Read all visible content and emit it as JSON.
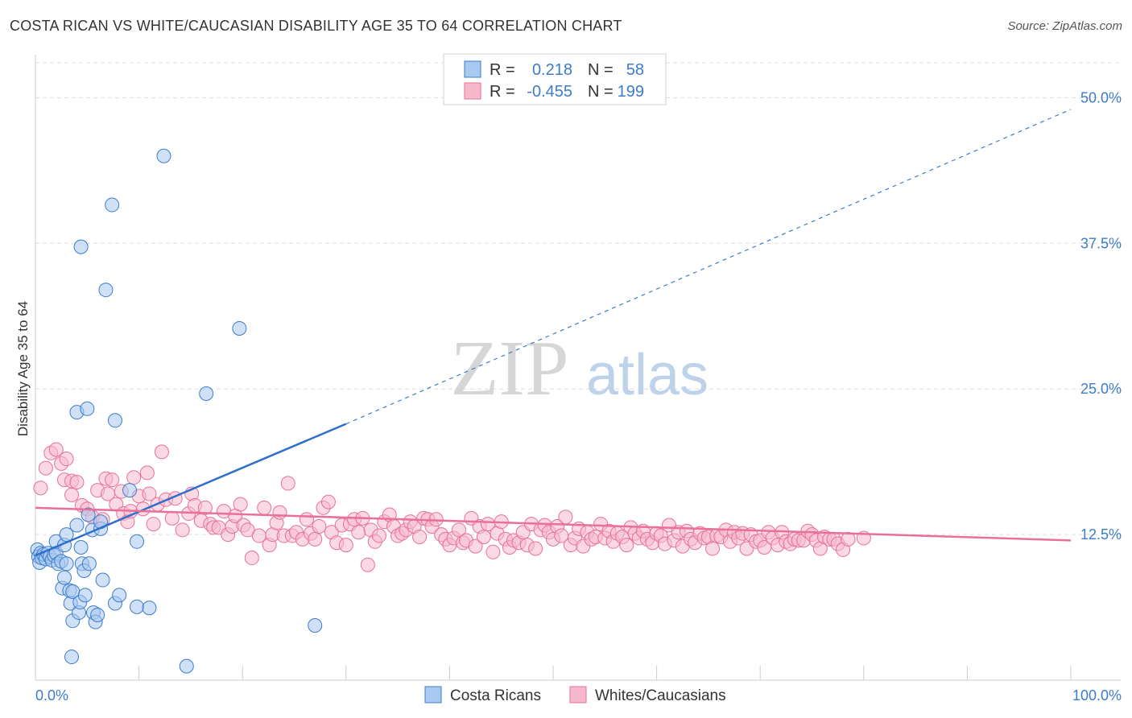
{
  "header": {
    "title": "COSTA RICAN VS WHITE/CAUCASIAN DISABILITY AGE 35 TO 64 CORRELATION CHART",
    "source": "Source: ZipAtlas.com"
  },
  "watermark": {
    "part1": "ZIP",
    "part2": "atlas"
  },
  "colors": {
    "blue": "#3d7cc9",
    "blue_fill": "#a9c9f0",
    "pink": "#e8709a",
    "pink_fill": "#f6b9cc",
    "grid": "#dddddd"
  },
  "legend": {
    "r_label": "R =",
    "n_label": "N =",
    "rows": [
      {
        "series": "Costa Ricans",
        "r": "0.218",
        "n": "58"
      },
      {
        "series": "Whites/Caucasians",
        "r": "-0.455",
        "n": "199"
      }
    ]
  },
  "chart_data": {
    "type": "scatter",
    "title": "COSTA RICAN VS WHITE/CAUCASIAN DISABILITY AGE 35 TO 64 CORRELATION CHART",
    "ylabel": "Disability Age 35 to 64",
    "xlabel": "",
    "xlim": [
      0,
      100
    ],
    "ylim": [
      0,
      53
    ],
    "x_tick_labels": [
      "0.0%",
      "100.0%"
    ],
    "y_ticks": [
      12.5,
      25.0,
      37.5,
      50.0
    ],
    "y_tick_labels": [
      "12.5%",
      "25.0%",
      "37.5%",
      "50.0%"
    ],
    "grid": true,
    "legend_position": "top-center",
    "series": [
      {
        "name": "Costa Ricans",
        "color": "#3d7cc9",
        "trend": {
          "x0": 0,
          "y0": 10.7,
          "x1": 30,
          "y1": 22.0,
          "dashed_to_x": 100,
          "dashed_to_y": 49.0
        },
        "points": [
          [
            0.2,
            11.2
          ],
          [
            0.3,
            10.6
          ],
          [
            0.4,
            10.1
          ],
          [
            0.5,
            10.9
          ],
          [
            0.6,
            10.5
          ],
          [
            0.8,
            10.8
          ],
          [
            1.0,
            10.4
          ],
          [
            1.2,
            10.9
          ],
          [
            1.4,
            10.6
          ],
          [
            1.6,
            10.3
          ],
          [
            1.8,
            10.7
          ],
          [
            2.0,
            10.9
          ],
          [
            2.0,
            11.9
          ],
          [
            2.2,
            10.0
          ],
          [
            2.5,
            10.2
          ],
          [
            2.6,
            7.9
          ],
          [
            2.8,
            8.8
          ],
          [
            2.8,
            11.6
          ],
          [
            3.0,
            12.5
          ],
          [
            3.0,
            10.0
          ],
          [
            3.3,
            7.7
          ],
          [
            3.4,
            6.6
          ],
          [
            3.6,
            5.1
          ],
          [
            3.6,
            7.6
          ],
          [
            4.0,
            13.3
          ],
          [
            3.5,
            2.0
          ],
          [
            4.0,
            23.0
          ],
          [
            4.2,
            5.8
          ],
          [
            4.3,
            6.7
          ],
          [
            4.4,
            11.4
          ],
          [
            4.5,
            10.0
          ],
          [
            4.4,
            37.2
          ],
          [
            4.7,
            9.4
          ],
          [
            4.8,
            7.3
          ],
          [
            5.0,
            23.3
          ],
          [
            5.1,
            14.2
          ],
          [
            5.2,
            10.0
          ],
          [
            5.5,
            12.9
          ],
          [
            5.6,
            5.8
          ],
          [
            5.8,
            5.0
          ],
          [
            6.0,
            5.6
          ],
          [
            6.3,
            13.0
          ],
          [
            6.3,
            13.6
          ],
          [
            6.5,
            8.6
          ],
          [
            6.8,
            33.5
          ],
          [
            7.4,
            40.8
          ],
          [
            7.7,
            6.6
          ],
          [
            7.7,
            22.3
          ],
          [
            8.1,
            7.3
          ],
          [
            9.1,
            16.3
          ],
          [
            9.8,
            11.9
          ],
          [
            9.8,
            6.3
          ],
          [
            11.0,
            6.2
          ],
          [
            12.4,
            45.0
          ],
          [
            14.6,
            1.2
          ],
          [
            16.5,
            24.6
          ],
          [
            19.7,
            30.2
          ],
          [
            27.0,
            4.7
          ]
        ]
      },
      {
        "name": "Whites/Caucasians",
        "color": "#e8709a",
        "trend": {
          "x0": 0,
          "y0": 14.8,
          "x1": 100,
          "y1": 12.0
        },
        "points": [
          [
            0.5,
            16.5
          ],
          [
            1.0,
            18.2
          ],
          [
            1.5,
            19.5
          ],
          [
            2.0,
            19.8
          ],
          [
            2.5,
            18.6
          ],
          [
            2.8,
            17.2
          ],
          [
            3.0,
            19.0
          ],
          [
            3.5,
            15.9
          ],
          [
            3.5,
            17.1
          ],
          [
            4.0,
            17.0
          ],
          [
            4.5,
            15.0
          ],
          [
            5.0,
            14.7
          ],
          [
            5.5,
            14.0
          ],
          [
            6.0,
            16.3
          ],
          [
            6.5,
            13.8
          ],
          [
            6.8,
            17.3
          ],
          [
            7.0,
            16.0
          ],
          [
            7.4,
            17.2
          ],
          [
            7.8,
            15.1
          ],
          [
            8.3,
            16.2
          ],
          [
            8.5,
            14.3
          ],
          [
            8.9,
            13.6
          ],
          [
            9.2,
            14.5
          ],
          [
            9.5,
            17.4
          ],
          [
            10.0,
            15.8
          ],
          [
            10.4,
            14.7
          ],
          [
            10.8,
            17.8
          ],
          [
            11.0,
            16.0
          ],
          [
            11.4,
            13.4
          ],
          [
            11.8,
            15.1
          ],
          [
            12.2,
            19.6
          ],
          [
            12.6,
            15.5
          ],
          [
            13.2,
            13.9
          ],
          [
            13.5,
            15.6
          ],
          [
            14.2,
            12.9
          ],
          [
            14.8,
            14.3
          ],
          [
            15.1,
            16.0
          ],
          [
            15.4,
            15.0
          ],
          [
            16.0,
            13.7
          ],
          [
            16.4,
            14.8
          ],
          [
            16.9,
            13.4
          ],
          [
            17.2,
            13.1
          ],
          [
            17.7,
            13.1
          ],
          [
            18.2,
            14.5
          ],
          [
            18.6,
            12.5
          ],
          [
            19.0,
            13.2
          ],
          [
            19.3,
            14.1
          ],
          [
            19.8,
            15.1
          ],
          [
            20.1,
            13.3
          ],
          [
            20.5,
            12.9
          ],
          [
            20.9,
            10.5
          ],
          [
            21.6,
            12.4
          ],
          [
            22.1,
            14.8
          ],
          [
            22.6,
            11.6
          ],
          [
            22.9,
            12.5
          ],
          [
            23.3,
            13.5
          ],
          [
            23.6,
            14.4
          ],
          [
            24.0,
            12.4
          ],
          [
            24.4,
            16.9
          ],
          [
            24.8,
            12.4
          ],
          [
            25.2,
            12.7
          ],
          [
            25.8,
            12.1
          ],
          [
            26.2,
            13.8
          ],
          [
            26.6,
            12.6
          ],
          [
            27.0,
            12.1
          ],
          [
            27.4,
            13.2
          ],
          [
            27.8,
            14.8
          ],
          [
            28.3,
            15.3
          ],
          [
            28.6,
            12.7
          ],
          [
            29.1,
            11.8
          ],
          [
            29.6,
            13.3
          ],
          [
            30.0,
            11.6
          ],
          [
            30.4,
            13.4
          ],
          [
            30.8,
            13.8
          ],
          [
            31.2,
            12.7
          ],
          [
            31.6,
            13.9
          ],
          [
            32.1,
            9.9
          ],
          [
            32.4,
            12.9
          ],
          [
            32.8,
            11.9
          ],
          [
            33.2,
            12.4
          ],
          [
            33.7,
            13.6
          ],
          [
            34.2,
            14.2
          ],
          [
            34.6,
            13.2
          ],
          [
            35.0,
            12.4
          ],
          [
            35.4,
            12.6
          ],
          [
            35.8,
            12.9
          ],
          [
            36.2,
            13.6
          ],
          [
            36.6,
            13.2
          ],
          [
            37.1,
            12.3
          ],
          [
            37.5,
            13.9
          ],
          [
            37.9,
            13.8
          ],
          [
            38.3,
            13.2
          ],
          [
            38.7,
            13.8
          ],
          [
            39.2,
            12.5
          ],
          [
            39.6,
            12.1
          ],
          [
            40.0,
            11.6
          ],
          [
            40.4,
            12.2
          ],
          [
            40.9,
            12.9
          ],
          [
            41.3,
            11.8
          ],
          [
            41.6,
            12.0
          ],
          [
            42.1,
            13.9
          ],
          [
            42.5,
            11.5
          ],
          [
            42.9,
            13.2
          ],
          [
            43.3,
            12.3
          ],
          [
            43.7,
            13.4
          ],
          [
            44.2,
            11.0
          ],
          [
            44.6,
            12.6
          ],
          [
            45.0,
            13.6
          ],
          [
            45.4,
            12.1
          ],
          [
            45.8,
            11.4
          ],
          [
            46.2,
            12.0
          ],
          [
            46.7,
            11.8
          ],
          [
            47.1,
            12.7
          ],
          [
            47.5,
            11.6
          ],
          [
            47.9,
            13.4
          ],
          [
            48.3,
            11.3
          ],
          [
            48.8,
            12.9
          ],
          [
            49.2,
            13.3
          ],
          [
            49.6,
            12.7
          ],
          [
            50.0,
            12.1
          ],
          [
            50.4,
            13.2
          ],
          [
            50.8,
            12.4
          ],
          [
            51.2,
            14.0
          ],
          [
            51.7,
            11.6
          ],
          [
            52.1,
            12.2
          ],
          [
            52.5,
            13.0
          ],
          [
            52.9,
            11.5
          ],
          [
            53.3,
            12.7
          ],
          [
            53.7,
            12.1
          ],
          [
            54.1,
            12.3
          ],
          [
            54.6,
            13.4
          ],
          [
            55.0,
            12.2
          ],
          [
            55.4,
            12.8
          ],
          [
            55.8,
            11.9
          ],
          [
            56.2,
            12.6
          ],
          [
            56.7,
            12.3
          ],
          [
            57.1,
            11.6
          ],
          [
            57.5,
            13.1
          ],
          [
            57.9,
            12.6
          ],
          [
            58.3,
            12.2
          ],
          [
            58.7,
            12.8
          ],
          [
            59.1,
            12.1
          ],
          [
            59.6,
            11.8
          ],
          [
            60.0,
            12.6
          ],
          [
            60.4,
            12.4
          ],
          [
            60.8,
            11.7
          ],
          [
            61.2,
            13.3
          ],
          [
            61.7,
            12.0
          ],
          [
            62.1,
            12.7
          ],
          [
            62.5,
            11.5
          ],
          [
            62.9,
            12.8
          ],
          [
            63.3,
            12.1
          ],
          [
            63.7,
            11.8
          ],
          [
            64.2,
            12.6
          ],
          [
            64.6,
            12.2
          ],
          [
            65.0,
            12.3
          ],
          [
            65.4,
            11.3
          ],
          [
            65.8,
            12.4
          ],
          [
            66.2,
            12.3
          ],
          [
            66.7,
            12.9
          ],
          [
            67.1,
            11.9
          ],
          [
            67.5,
            12.7
          ],
          [
            67.9,
            12.2
          ],
          [
            68.3,
            12.6
          ],
          [
            68.7,
            11.3
          ],
          [
            69.1,
            12.5
          ],
          [
            69.6,
            11.9
          ],
          [
            70.0,
            12.0
          ],
          [
            70.4,
            11.4
          ],
          [
            70.8,
            12.7
          ],
          [
            71.2,
            12.2
          ],
          [
            71.7,
            11.6
          ],
          [
            72.1,
            12.7
          ],
          [
            72.5,
            11.9
          ],
          [
            72.9,
            11.7
          ],
          [
            73.3,
            12.1
          ],
          [
            73.7,
            12.0
          ],
          [
            74.2,
            12.0
          ],
          [
            74.6,
            12.8
          ],
          [
            75.0,
            12.5
          ],
          [
            75.4,
            12.0
          ],
          [
            75.8,
            11.3
          ],
          [
            76.2,
            12.3
          ],
          [
            76.7,
            12.1
          ],
          [
            77.1,
            12.1
          ],
          [
            77.5,
            11.7
          ],
          [
            78.0,
            11.2
          ],
          [
            78.5,
            12.1
          ],
          [
            80.0,
            12.2
          ]
        ]
      }
    ]
  },
  "bottom_legend": [
    {
      "label": "Costa Ricans"
    },
    {
      "label": "Whites/Caucasians"
    }
  ]
}
